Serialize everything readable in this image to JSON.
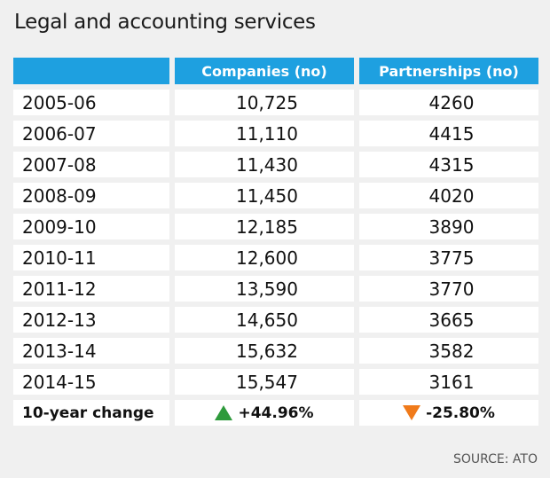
{
  "chart_data": {
    "type": "table",
    "title": "Legal and accounting services",
    "columns": [
      "",
      "Companies (no)",
      "Partnerships (no)"
    ],
    "rows": [
      {
        "year": "2005-06",
        "companies": "10,725",
        "partnerships": "4260"
      },
      {
        "year": "2006-07",
        "companies": "11,110",
        "partnerships": "4415"
      },
      {
        "year": "2007-08",
        "companies": "11,430",
        "partnerships": "4315"
      },
      {
        "year": "2008-09",
        "companies": "11,450",
        "partnerships": "4020"
      },
      {
        "year": "2009-10",
        "companies": "12,185",
        "partnerships": "3890"
      },
      {
        "year": "2010-11",
        "companies": "12,600",
        "partnerships": "3775"
      },
      {
        "year": "2011-12",
        "companies": "13,590",
        "partnerships": "3770"
      },
      {
        "year": "2012-13",
        "companies": "14,650",
        "partnerships": "3665"
      },
      {
        "year": "2013-14",
        "companies": "15,632",
        "partnerships": "3582"
      },
      {
        "year": "2014-15",
        "companies": "15,547",
        "partnerships": "3161"
      }
    ],
    "change": {
      "label": "10-year change",
      "companies": "+44.96%",
      "partnerships": "-25.80%",
      "companies_direction": "up",
      "partnerships_direction": "down"
    },
    "source": "SOURCE: ATO"
  },
  "colors": {
    "header_bg": "#1ea0e0",
    "up_arrow": "#2e9a3c",
    "down_arrow": "#f07a1a",
    "background": "#f0f0f0"
  }
}
